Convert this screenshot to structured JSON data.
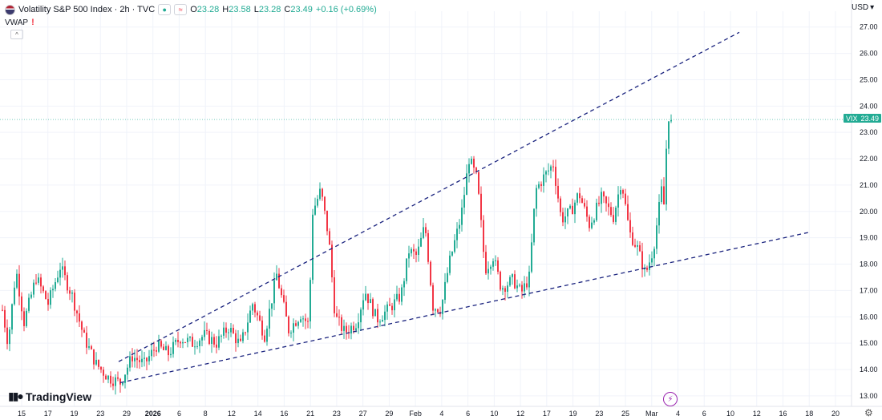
{
  "header": {
    "symbol": "Volatility S&P 500 Index · 2h · TVC",
    "ohlc": [
      {
        "label": "O",
        "value": "23.28"
      },
      {
        "label": "H",
        "value": "23.58"
      },
      {
        "label": "L",
        "value": "23.28"
      },
      {
        "label": "C",
        "value": "23.49"
      }
    ],
    "change": "+0.16 (+0.69%)",
    "indicator": "VWAP",
    "indicator_warning": "!",
    "currency": "USD",
    "currency_icon": "chevron-down-icon"
  },
  "branding": {
    "logo_text": "TradingView"
  },
  "price_tag": {
    "label": "VIX",
    "value": "23.49",
    "color": "#22ab94"
  },
  "colors": {
    "up": "#22ab94",
    "down": "#f23645",
    "trendline": "#1a237e",
    "grid": "#f0f3fa"
  },
  "chart_data": {
    "type": "candlestick",
    "symbol": "VIX",
    "interval": "2h",
    "ylim": [
      12.6,
      27.6
    ],
    "yticks": [
      "13.00",
      "14.00",
      "15.00",
      "16.00",
      "17.00",
      "18.00",
      "19.00",
      "20.00",
      "21.00",
      "22.00",
      "23.00",
      "24.00",
      "25.00",
      "26.00",
      "27.00"
    ],
    "xticks": [
      {
        "label": "15",
        "bold": false
      },
      {
        "label": "17",
        "bold": false
      },
      {
        "label": "19",
        "bold": false
      },
      {
        "label": "23",
        "bold": false
      },
      {
        "label": "29",
        "bold": false
      },
      {
        "label": "2026",
        "bold": true
      },
      {
        "label": "6",
        "bold": false
      },
      {
        "label": "8",
        "bold": false
      },
      {
        "label": "12",
        "bold": false
      },
      {
        "label": "14",
        "bold": false
      },
      {
        "label": "16",
        "bold": false
      },
      {
        "label": "21",
        "bold": false
      },
      {
        "label": "23",
        "bold": false
      },
      {
        "label": "27",
        "bold": false
      },
      {
        "label": "29",
        "bold": false
      },
      {
        "label": "Feb",
        "bold": false
      },
      {
        "label": "4",
        "bold": false
      },
      {
        "label": "6",
        "bold": false
      },
      {
        "label": "10",
        "bold": false
      },
      {
        "label": "12",
        "bold": false
      },
      {
        "label": "17",
        "bold": false
      },
      {
        "label": "19",
        "bold": false
      },
      {
        "label": "23",
        "bold": false
      },
      {
        "label": "25",
        "bold": false
      },
      {
        "label": "Mar",
        "bold": false
      },
      {
        "label": "4",
        "bold": false
      },
      {
        "label": "6",
        "bold": false
      },
      {
        "label": "10",
        "bold": false
      },
      {
        "label": "12",
        "bold": false
      },
      {
        "label": "16",
        "bold": false
      },
      {
        "label": "18",
        "bold": false
      },
      {
        "label": "20",
        "bold": false
      }
    ],
    "last_price": 23.49,
    "price_path": [
      [
        0,
        16.8
      ],
      [
        10,
        15.0
      ],
      [
        20,
        17.8
      ],
      [
        30,
        15.8
      ],
      [
        45,
        17.5
      ],
      [
        60,
        16.5
      ],
      [
        75,
        17.9
      ],
      [
        90,
        16.8
      ],
      [
        105,
        15.2
      ],
      [
        120,
        14.2
      ],
      [
        135,
        13.7
      ],
      [
        150,
        13.5
      ],
      [
        165,
        14.5
      ],
      [
        180,
        14.2
      ],
      [
        195,
        14.9
      ],
      [
        210,
        14.6
      ],
      [
        225,
        15.2
      ],
      [
        240,
        15.0
      ],
      [
        255,
        15.3
      ],
      [
        270,
        15.0
      ],
      [
        285,
        15.6
      ],
      [
        300,
        14.9
      ],
      [
        315,
        16.5
      ],
      [
        330,
        15.3
      ],
      [
        345,
        17.6
      ],
      [
        360,
        15.5
      ],
      [
        375,
        16.1
      ],
      [
        385,
        15.7
      ],
      [
        390,
        20.0
      ],
      [
        400,
        20.8
      ],
      [
        410,
        19.0
      ],
      [
        418,
        16.0
      ],
      [
        430,
        15.4
      ],
      [
        445,
        15.8
      ],
      [
        455,
        17.0
      ],
      [
        470,
        15.9
      ],
      [
        485,
        16.3
      ],
      [
        500,
        16.8
      ],
      [
        510,
        18.5
      ],
      [
        520,
        18.3
      ],
      [
        530,
        19.5
      ],
      [
        540,
        16.4
      ],
      [
        550,
        16.3
      ],
      [
        560,
        18.0
      ],
      [
        575,
        19.8
      ],
      [
        585,
        22.0
      ],
      [
        595,
        21.2
      ],
      [
        605,
        17.8
      ],
      [
        615,
        18.3
      ],
      [
        625,
        17.1
      ],
      [
        640,
        17.4
      ],
      [
        650,
        16.9
      ],
      [
        660,
        17.5
      ],
      [
        668,
        20.8
      ],
      [
        678,
        21.3
      ],
      [
        690,
        21.8
      ],
      [
        700,
        19.7
      ],
      [
        712,
        20.0
      ],
      [
        722,
        20.7
      ],
      [
        735,
        19.5
      ],
      [
        750,
        20.5
      ],
      [
        765,
        19.8
      ],
      [
        775,
        21.2
      ],
      [
        785,
        19.2
      ],
      [
        795,
        18.6
      ],
      [
        805,
        17.6
      ],
      [
        815,
        18.6
      ],
      [
        825,
        20.8
      ],
      [
        830,
        19.9
      ],
      [
        832,
        24.9
      ],
      [
        835,
        23.0
      ],
      [
        838,
        23.49
      ]
    ],
    "trendlines": [
      {
        "from": [
          "Dec 26",
          14.3
        ],
        "to": [
          "Mar 9",
          26.8
        ],
        "style": "dashed"
      },
      {
        "from": [
          "Dec 26",
          13.5
        ],
        "to": [
          "Mar 18",
          19.2
        ],
        "style": "dashed"
      }
    ]
  }
}
